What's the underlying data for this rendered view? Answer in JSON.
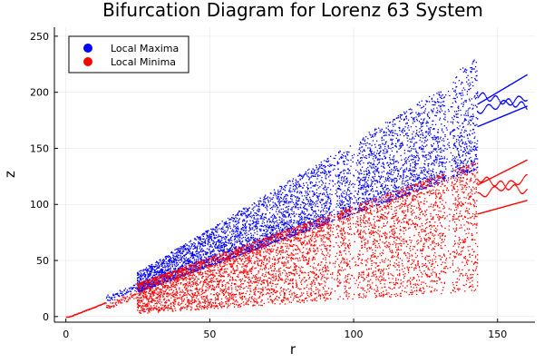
{
  "chart_data": {
    "type": "scatter",
    "title": "Bifurcation Diagram for Lorenz 63 System",
    "xlabel": "r",
    "ylabel": "z",
    "xlim": [
      -4,
      163
    ],
    "ylim": [
      -5,
      258
    ],
    "xticks": [
      0,
      50,
      100,
      150
    ],
    "yticks": [
      0,
      50,
      100,
      150,
      200,
      250
    ],
    "grid": true,
    "legend_position": "top-left",
    "series": [
      {
        "name": "Local Maxima",
        "color": "#0000ff",
        "description_points": [
          {
            "r": 24.7,
            "z_low": 22,
            "z_high": 40
          },
          {
            "r": 50,
            "z_low": 60,
            "z_high": 88
          },
          {
            "r": 75,
            "z_low": 82,
            "z_high": 128
          },
          {
            "r": 100,
            "z_low": 108,
            "z_high": 170
          },
          {
            "r": 125,
            "z_low": 130,
            "z_high": 205
          },
          {
            "r": 142,
            "z_low": 148,
            "z_high": 232
          },
          {
            "r": 160,
            "z_low": 188,
            "z_high": 216
          }
        ]
      },
      {
        "name": "Local Minima",
        "color": "#ff0000",
        "description_points": [
          {
            "r": 24.7,
            "z_low": 3,
            "z_high": 30
          },
          {
            "r": 50,
            "z_low": 5,
            "z_high": 58
          },
          {
            "r": 75,
            "z_low": 8,
            "z_high": 82
          },
          {
            "r": 100,
            "z_low": 12,
            "z_high": 107
          },
          {
            "r": 125,
            "z_low": 20,
            "z_high": 128
          },
          {
            "r": 142,
            "z_low": 28,
            "z_high": 138
          },
          {
            "r": 160,
            "z_low": 104,
            "z_high": 140
          }
        ]
      }
    ],
    "periodic_windows_r": [
      93,
      100,
      133,
      145
    ]
  }
}
